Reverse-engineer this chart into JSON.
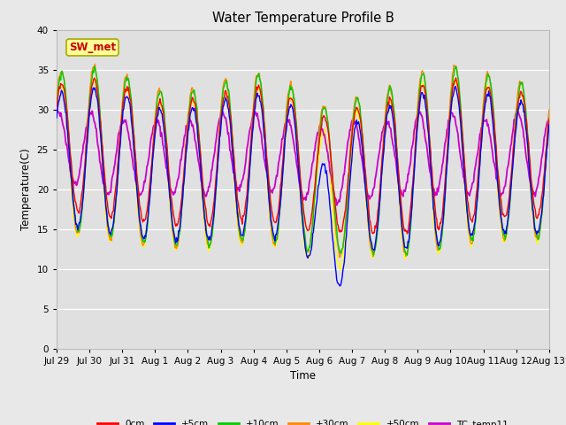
{
  "title": "Water Temperature Profile B",
  "xlabel": "Time",
  "ylabel": "Temperature(C)",
  "ylim": [
    0,
    40
  ],
  "yticks": [
    0,
    5,
    10,
    15,
    20,
    25,
    30,
    35,
    40
  ],
  "xtick_labels": [
    "Jul 29",
    "Jul 30",
    "Jul 31",
    "Aug 1",
    "Aug 2",
    "Aug 3",
    "Aug 4",
    "Aug 5",
    "Aug 6",
    "Aug 7",
    "Aug 8",
    "Aug 9",
    "Aug 10",
    "Aug 11",
    "Aug 12",
    "Aug 13"
  ],
  "series_colors": {
    "0cm": "#ff0000",
    "+5cm": "#0000ff",
    "+10cm": "#00cc00",
    "+30cm": "#ff8800",
    "+50cm": "#ffff00",
    "TC_temp11": "#cc00cc"
  },
  "annotation_text": "SW_met",
  "annotation_color": "#cc0000",
  "annotation_bg": "#ffff99",
  "annotation_border": "#aaaa00",
  "fig_facecolor": "#e8e8e8",
  "plot_facecolor": "#e0e0e0"
}
